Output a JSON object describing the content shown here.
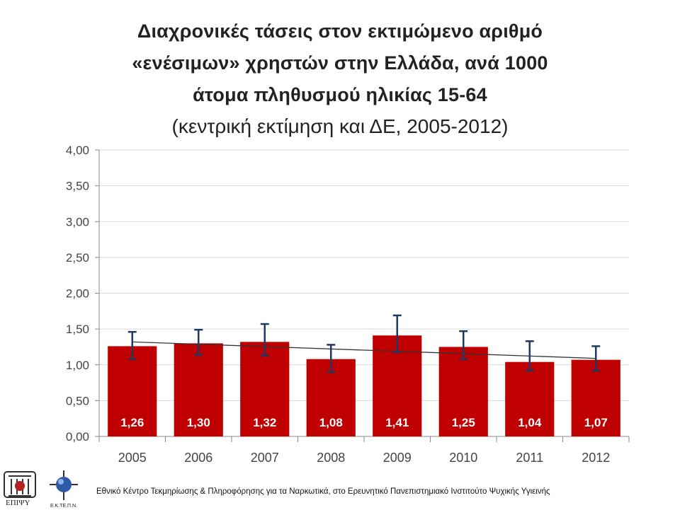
{
  "title_lines": [
    "Διαχρονικές τάσεις στον εκτιμώμενο αριθμό",
    "«ενέσιμων» χρηστών στην Ελλάδα, ανά 1000",
    "άτομα πληθυσμού  ηλικίας 15-64",
    "(κεντρική εκτίμηση και ΔΕ, 2005-2012)"
  ],
  "chart_data": {
    "type": "bar",
    "categories": [
      "2005",
      "2006",
      "2007",
      "2008",
      "2009",
      "2010",
      "2011",
      "2012"
    ],
    "values": [
      1.26,
      1.3,
      1.32,
      1.08,
      1.41,
      1.25,
      1.04,
      1.07
    ],
    "value_labels": [
      "1,26",
      "1,30",
      "1,32",
      "1,08",
      "1,41",
      "1,25",
      "1,04",
      "1,07"
    ],
    "error_upper": [
      1.46,
      1.49,
      1.57,
      1.28,
      1.69,
      1.47,
      1.33,
      1.26
    ],
    "error_lower": [
      1.08,
      1.14,
      1.13,
      0.9,
      1.18,
      1.08,
      0.92,
      0.92
    ],
    "trendline": [
      1.32,
      1.09
    ],
    "ylim": [
      0,
      4
    ],
    "yticks": [
      "0,00",
      "0,50",
      "1,00",
      "1,50",
      "2,00",
      "2,50",
      "3,00",
      "3,50",
      "4,00"
    ],
    "grid": true,
    "colors": {
      "bar": "#C00000",
      "error": "#1F3864",
      "trend": "#333333",
      "grid": "#D9D9D9"
    }
  },
  "footer": {
    "text": "Εθνικό Κέντρο Τεκμηρίωσης & Πληροφόρησης για τα Ναρκωτικά,  στο Ερευνητικό Πανεπιστημιακό Ινστιτούτο Ψυχικής Υγιεινής",
    "logo_left_label": "ΕΠΙΨΥ",
    "logo_right_label": "Ε.Κ.ΤΕ.Π.Ν."
  }
}
